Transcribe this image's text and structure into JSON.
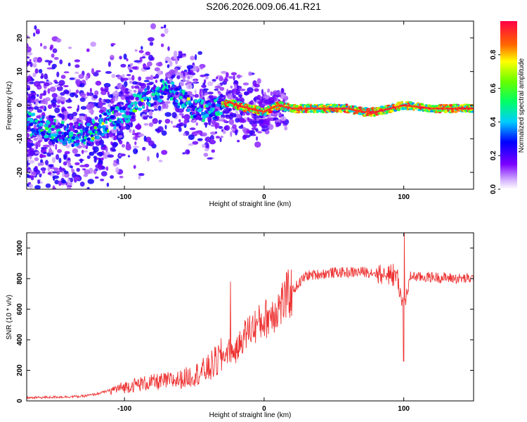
{
  "title": "S206.2026.009.06.41.R21",
  "chart_data": [
    {
      "type": "heatmap",
      "xlabel": "Height of straight line (km)",
      "ylabel": "Frequency (Hz)",
      "xlim": [
        -170,
        150
      ],
      "ylim": [
        -25,
        25
      ],
      "xticks": [
        -100,
        0,
        100
      ],
      "yticks": [
        -20,
        -10,
        0,
        10,
        20
      ],
      "ridge": [
        [
          -170,
          -5
        ],
        [
          -150,
          -8
        ],
        [
          -130,
          -9
        ],
        [
          -120,
          -7
        ],
        [
          -110,
          -4
        ],
        [
          -100,
          -3
        ],
        [
          -90,
          1
        ],
        [
          -80,
          3
        ],
        [
          -70,
          5
        ],
        [
          -60,
          2
        ],
        [
          -50,
          -1
        ],
        [
          -40,
          -2
        ],
        [
          -30,
          0
        ],
        [
          -25,
          1
        ],
        [
          -20,
          0
        ],
        [
          -10,
          -1
        ],
        [
          0,
          -2
        ],
        [
          5,
          -1
        ],
        [
          10,
          0
        ],
        [
          20,
          -1
        ],
        [
          40,
          -1
        ],
        [
          60,
          -1
        ],
        [
          70,
          -2
        ],
        [
          80,
          -2
        ],
        [
          90,
          -1
        ],
        [
          100,
          0
        ],
        [
          120,
          -1
        ],
        [
          150,
          -1
        ]
      ],
      "colorbar": {
        "label": "Normalized spectral amplitude",
        "range": [
          0,
          1
        ],
        "ticks": [
          "0.0",
          "0.2",
          "0.4",
          "0.6",
          "0.8"
        ]
      }
    },
    {
      "type": "line",
      "xlabel": "Height of straight line (km)",
      "ylabel": "SNR (10 * v/v)",
      "xlim": [
        -170,
        150
      ],
      "ylim": [
        0,
        1100
      ],
      "xticks": [
        -100,
        0,
        100
      ],
      "yticks": [
        0,
        200,
        400,
        600,
        800,
        1000
      ],
      "series": [
        {
          "name": "SNR",
          "color": "#ee3333",
          "x": [
            -170,
            -150,
            -130,
            -120,
            -110,
            -100,
            -90,
            -80,
            -70,
            -60,
            -50,
            -40,
            -30,
            -25,
            -20,
            -15,
            -10,
            0,
            10,
            20,
            30,
            40,
            50,
            60,
            70,
            80,
            90,
            95,
            100,
            105,
            110,
            120,
            130,
            140,
            150
          ],
          "y": [
            20,
            25,
            30,
            45,
            70,
            90,
            110,
            120,
            130,
            140,
            170,
            210,
            290,
            330,
            320,
            420,
            470,
            530,
            610,
            720,
            820,
            830,
            840,
            840,
            845,
            840,
            830,
            820,
            600,
            820,
            810,
            810,
            805,
            800,
            800
          ]
        }
      ]
    }
  ]
}
